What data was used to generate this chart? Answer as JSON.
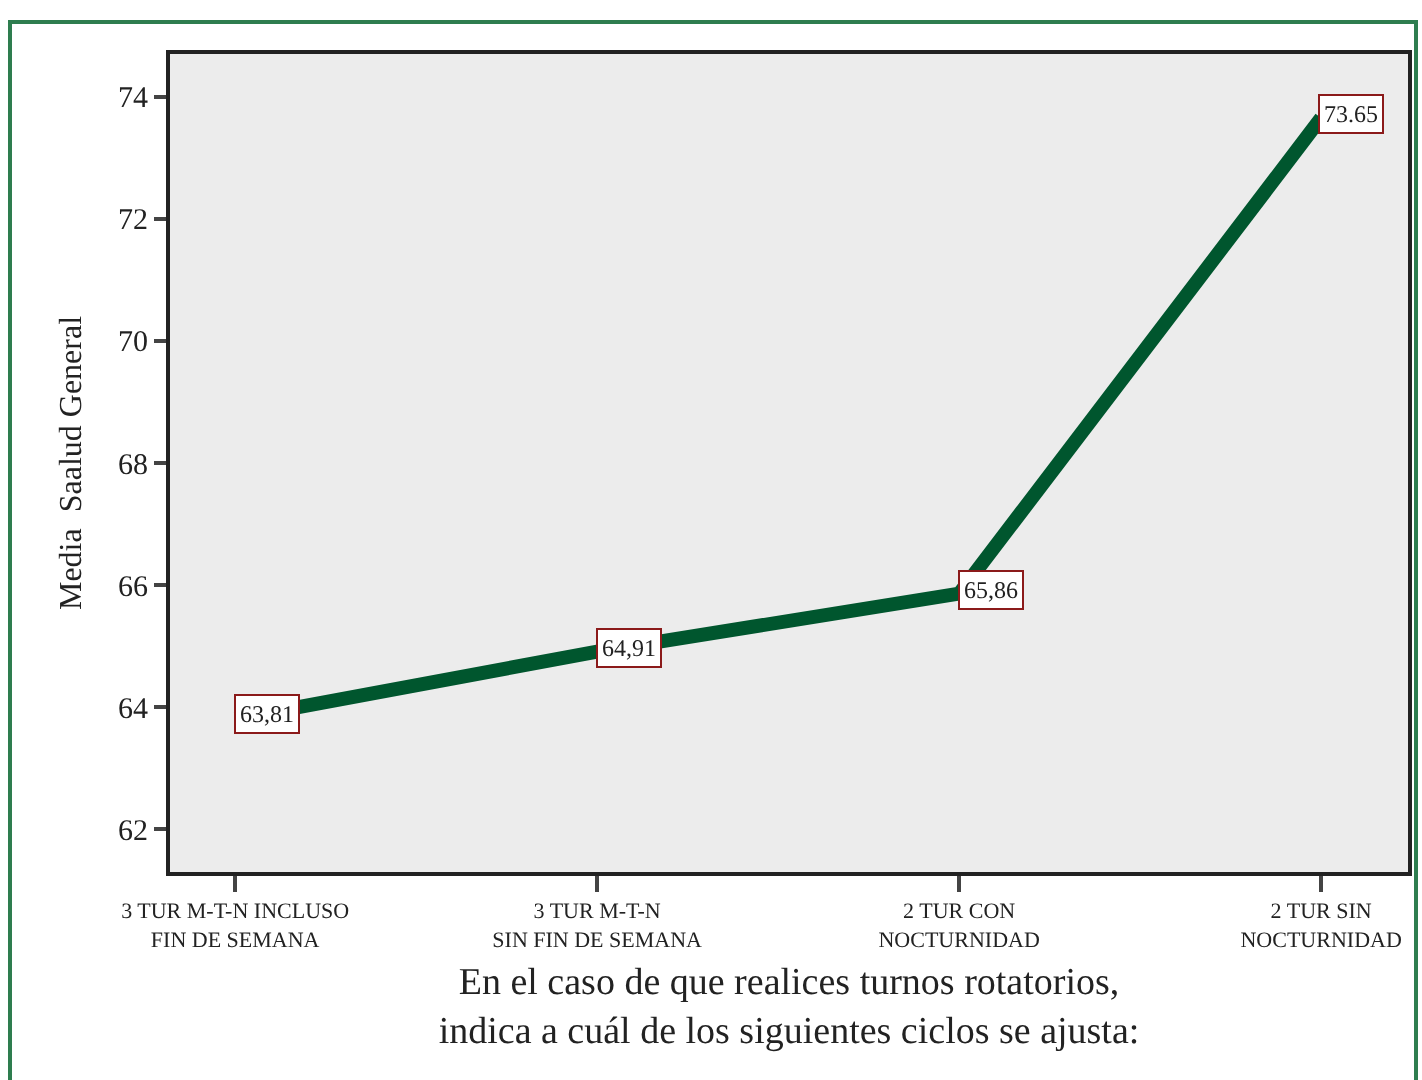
{
  "chart_data": {
    "type": "line",
    "xlabel": "En el caso de que realices turnos rotatorios,\nindica a cuál de los siguientes ciclos se ajusta:",
    "ylabel": "Media  Saalud General",
    "categories": [
      "3 TUR M-T-N INCLUSO\nFIN DE SEMANA",
      "3 TUR M-T-N\nSIN FIN DE SEMANA",
      "2 TUR CON\nNOCTURNIDAD",
      "2 TUR SIN\nNOCTURNIDAD"
    ],
    "series": [
      {
        "color": "#00562e",
        "values": [
          63.81,
          64.91,
          65.86,
          73.65
        ],
        "value_labels": [
          "63,81",
          "64,91",
          "65,86",
          "73.65"
        ]
      }
    ],
    "ylim": [
      61.3,
      74.7
    ],
    "yticks": [
      62,
      64,
      66,
      68,
      70,
      72,
      74
    ],
    "grid": false,
    "marker": "none",
    "line_style": "solid"
  }
}
